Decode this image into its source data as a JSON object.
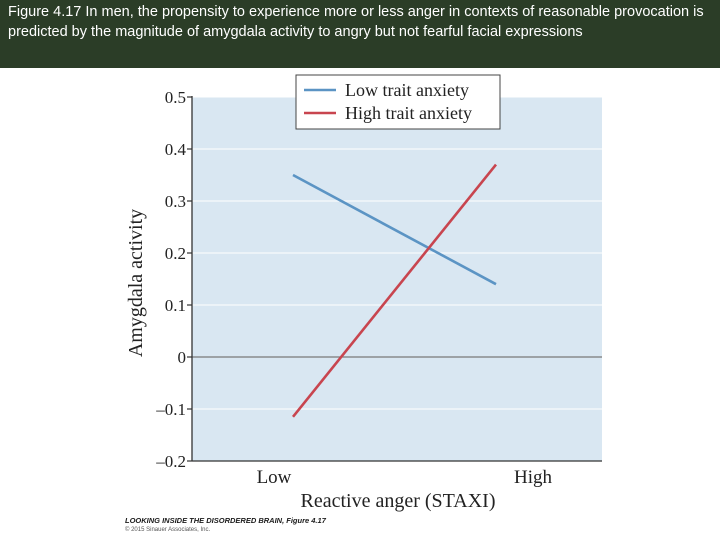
{
  "slide": {
    "caption": "Figure 4.17 In men, the propensity to experience more or less anger in contexts of reasonable provocation is predicted by the magnitude of amygdala activity to angry but not fearful facial expressions"
  },
  "credit": {
    "book": "LOOKING INSIDE THE DISORDERED BRAIN, Figure 4.17",
    "copyright": "© 2015 Sinauer Associates, Inc."
  },
  "colors": {
    "plot_background": "#d9e7f2",
    "low_trait_anxiety": "#5b94c4",
    "high_trait_anxiety": "#c8454f",
    "header_background": "#2b3d27"
  },
  "chart_data": {
    "type": "line",
    "xlabel": "Reactive anger (STAXI)",
    "ylabel": "Amygdala activity",
    "categories": [
      "Low",
      "High"
    ],
    "ylim": [
      -0.2,
      0.5
    ],
    "yticks": [
      -0.2,
      -0.1,
      0,
      0.1,
      0.2,
      0.3,
      0.4,
      0.5
    ],
    "ytick_labels": [
      "–0.2",
      "–0.1",
      "0",
      "0.1",
      "0.2",
      "0.3",
      "0.4",
      "0.5"
    ],
    "grid": true,
    "legend_position": "top-center",
    "series": [
      {
        "name": "Low trait anxiety",
        "values": [
          0.35,
          0.14
        ],
        "color": "#5b94c4"
      },
      {
        "name": "High trait anxiety",
        "values": [
          -0.115,
          0.37
        ],
        "color": "#c8454f"
      }
    ]
  }
}
